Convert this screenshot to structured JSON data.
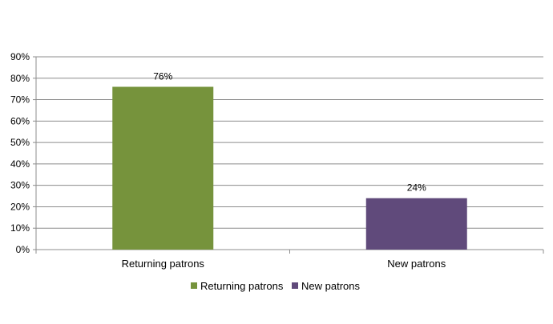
{
  "chart_data": {
    "type": "bar",
    "categories": [
      "Returning patrons",
      "New patrons"
    ],
    "series": [
      {
        "name": "Returning patrons",
        "values": [
          76,
          null
        ],
        "color": "#76933c"
      },
      {
        "name": "New patrons",
        "values": [
          null,
          24
        ],
        "color": "#604a7b"
      }
    ],
    "data_labels": [
      "76%",
      "24%"
    ],
    "ylim": [
      0,
      90
    ],
    "ytick_step": 10,
    "ytick_labels": [
      "0%",
      "10%",
      "20%",
      "30%",
      "40%",
      "50%",
      "60%",
      "70%",
      "80%",
      "90%"
    ],
    "grid": true,
    "legend_position": "bottom",
    "title": "",
    "xlabel": "",
    "ylabel": ""
  }
}
